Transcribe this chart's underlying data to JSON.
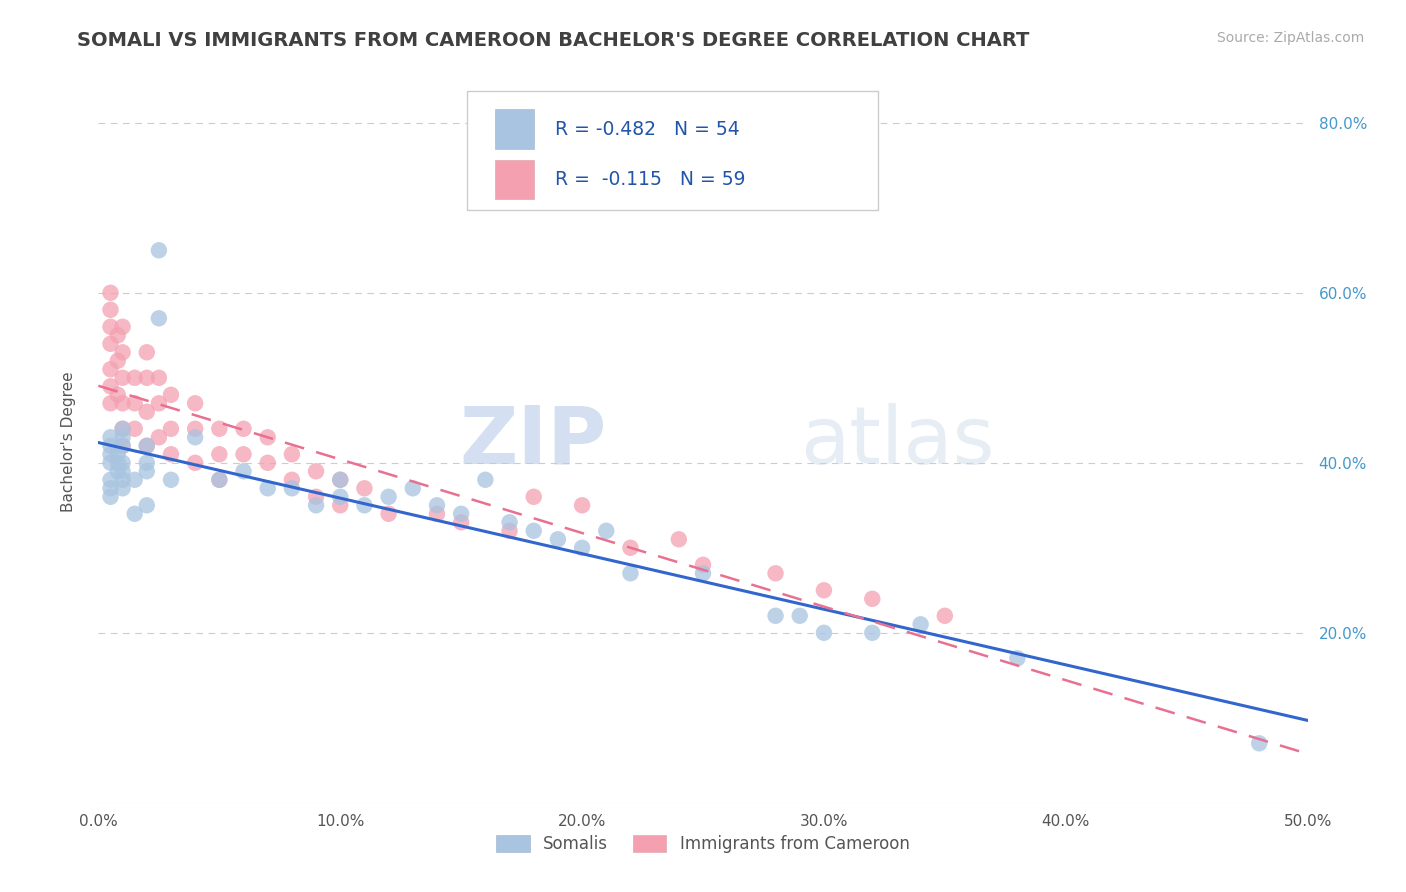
{
  "title": "SOMALI VS IMMIGRANTS FROM CAMEROON BACHELOR'S DEGREE CORRELATION CHART",
  "source_text": "Source: ZipAtlas.com",
  "ylabel": "Bachelor's Degree",
  "xlim": [
    0.0,
    0.5
  ],
  "ylim": [
    0.0,
    0.85
  ],
  "xtick_labels": [
    "0.0%",
    "10.0%",
    "20.0%",
    "30.0%",
    "40.0%",
    "50.0%"
  ],
  "xtick_values": [
    0.0,
    0.1,
    0.2,
    0.3,
    0.4,
    0.5
  ],
  "ytick_labels": [
    "20.0%",
    "40.0%",
    "60.0%",
    "80.0%"
  ],
  "ytick_values": [
    0.2,
    0.4,
    0.6,
    0.8
  ],
  "grid_color": "#cccccc",
  "background_color": "#ffffff",
  "watermark_zip": "ZIP",
  "watermark_atlas": "atlas",
  "legend_r1": "-0.482",
  "legend_n1": "54",
  "legend_r2": "-0.115",
  "legend_n2": "59",
  "somali_color": "#a8c4e0",
  "cameroon_color": "#f4a0b0",
  "somali_line_color": "#3366cc",
  "cameroon_line_color": "#e87090",
  "title_color": "#404040",
  "title_fontsize": 14,
  "somali_x": [
    0.005,
    0.005,
    0.005,
    0.005,
    0.005,
    0.005,
    0.005,
    0.008,
    0.008,
    0.008,
    0.01,
    0.01,
    0.01,
    0.01,
    0.01,
    0.01,
    0.01,
    0.015,
    0.015,
    0.02,
    0.02,
    0.02,
    0.02,
    0.025,
    0.025,
    0.03,
    0.04,
    0.05,
    0.06,
    0.07,
    0.08,
    0.09,
    0.1,
    0.1,
    0.11,
    0.12,
    0.13,
    0.14,
    0.15,
    0.16,
    0.17,
    0.18,
    0.19,
    0.2,
    0.21,
    0.22,
    0.25,
    0.28,
    0.29,
    0.3,
    0.32,
    0.34,
    0.38,
    0.48
  ],
  "somali_y": [
    0.37,
    0.36,
    0.4,
    0.41,
    0.42,
    0.43,
    0.38,
    0.39,
    0.4,
    0.41,
    0.43,
    0.44,
    0.38,
    0.42,
    0.39,
    0.4,
    0.37,
    0.38,
    0.34,
    0.4,
    0.42,
    0.39,
    0.35,
    0.65,
    0.57,
    0.38,
    0.43,
    0.38,
    0.39,
    0.37,
    0.37,
    0.35,
    0.36,
    0.38,
    0.35,
    0.36,
    0.37,
    0.35,
    0.34,
    0.38,
    0.33,
    0.32,
    0.31,
    0.3,
    0.32,
    0.27,
    0.27,
    0.22,
    0.22,
    0.2,
    0.2,
    0.21,
    0.17,
    0.07
  ],
  "cameroon_x": [
    0.005,
    0.005,
    0.005,
    0.005,
    0.005,
    0.005,
    0.005,
    0.008,
    0.008,
    0.008,
    0.01,
    0.01,
    0.01,
    0.01,
    0.01,
    0.01,
    0.015,
    0.015,
    0.015,
    0.02,
    0.02,
    0.02,
    0.02,
    0.025,
    0.025,
    0.025,
    0.03,
    0.03,
    0.03,
    0.04,
    0.04,
    0.04,
    0.05,
    0.05,
    0.05,
    0.06,
    0.06,
    0.07,
    0.07,
    0.08,
    0.08,
    0.09,
    0.09,
    0.1,
    0.1,
    0.11,
    0.12,
    0.14,
    0.15,
    0.17,
    0.18,
    0.2,
    0.22,
    0.24,
    0.25,
    0.28,
    0.3,
    0.32,
    0.35
  ],
  "cameroon_y": [
    0.6,
    0.58,
    0.56,
    0.54,
    0.51,
    0.49,
    0.47,
    0.55,
    0.52,
    0.48,
    0.56,
    0.53,
    0.5,
    0.47,
    0.44,
    0.42,
    0.5,
    0.47,
    0.44,
    0.53,
    0.5,
    0.46,
    0.42,
    0.5,
    0.47,
    0.43,
    0.48,
    0.44,
    0.41,
    0.47,
    0.44,
    0.4,
    0.44,
    0.41,
    0.38,
    0.44,
    0.41,
    0.43,
    0.4,
    0.41,
    0.38,
    0.39,
    0.36,
    0.38,
    0.35,
    0.37,
    0.34,
    0.34,
    0.33,
    0.32,
    0.36,
    0.35,
    0.3,
    0.31,
    0.28,
    0.27,
    0.25,
    0.24,
    0.22
  ]
}
